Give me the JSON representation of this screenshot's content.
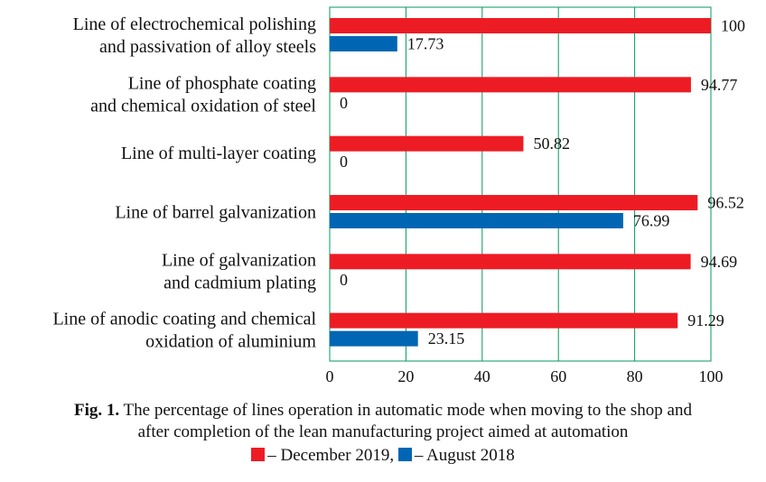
{
  "chart_data": {
    "type": "bar",
    "orientation": "horizontal",
    "categories": [
      [
        "Line of electrochemical polishing",
        "and passivation of alloy steels"
      ],
      [
        "Line of phosphate coating ",
        "and chemical oxidation of steel"
      ],
      [
        "Line of multi-layer coating"
      ],
      [
        "Line of barrel galvanization"
      ],
      [
        "Line of galvanization ",
        "and cadmium plating"
      ],
      [
        "Line of anodic coating and chemical",
        "oxidation of aluminium"
      ]
    ],
    "series": [
      {
        "name": "December 2019",
        "color": "#ED1C24",
        "values": [
          100,
          94.77,
          50.82,
          96.52,
          94.69,
          91.29
        ]
      },
      {
        "name": "August 2018",
        "color": "#0066B3",
        "values": [
          17.73,
          0,
          0,
          76.99,
          0,
          23.15
        ]
      }
    ],
    "value_labels": [
      [
        "100",
        "94.77",
        "50.82",
        "96.52",
        "94.69",
        "91.29"
      ],
      [
        "17.73",
        "0",
        "0",
        "76.99",
        "0",
        "23.15"
      ]
    ],
    "xlim": [
      0,
      100
    ],
    "xticks": [
      0,
      20,
      40,
      60,
      80,
      100
    ],
    "grid": true,
    "grid_color": "#009B5A"
  },
  "caption": {
    "prefix": "Fig. 1.",
    "line1": " The percentage of lines operation in automatic mode when moving to the shop and",
    "line2": "after completion of the lean manufacturing project aimed at automation"
  },
  "legend": {
    "items": [
      {
        "label": "– December 2019,",
        "color": "#ED1C24"
      },
      {
        "label": "– August 2018",
        "color": "#0066B3"
      }
    ]
  }
}
